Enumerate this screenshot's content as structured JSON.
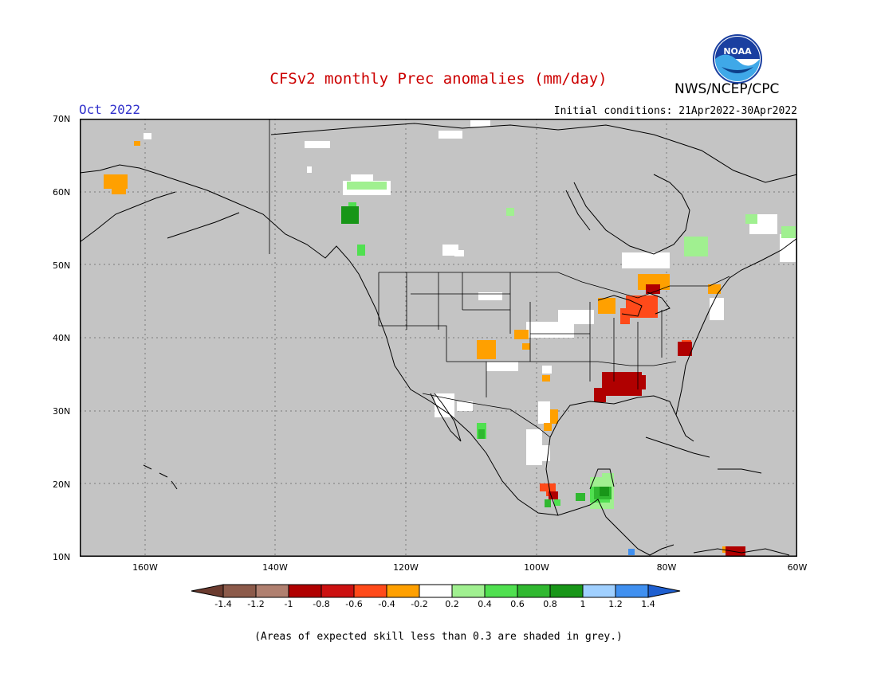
{
  "title": "CFSv2 monthly Prec anomalies (mm/day)",
  "agency": "NWS/NCEP/CPC",
  "logo_text": "NOAA",
  "period": "Oct 2022",
  "initial_conditions": "Initial conditions: 21Apr2022-30Apr2022",
  "footnote": "(Areas of expected skill less than 0.3 are shaded in grey.)",
  "colors": {
    "title": "#cc0000",
    "period": "#3333cc",
    "skill_mask": "#c4c4c4",
    "land_outline": "#000000",
    "no_anomaly": "#ffffff"
  },
  "map": {
    "lat_labels": [
      "70N",
      "60N",
      "50N",
      "40N",
      "30N",
      "20N",
      "10N"
    ],
    "lon_labels": [
      "160W",
      "140W",
      "120W",
      "100W",
      "80W",
      "60W"
    ],
    "lat_range": [
      10,
      70
    ],
    "lon_range": [
      -170,
      -60
    ],
    "grid": "dotted",
    "anomaly_regions": [
      {
        "region": "Western Alaska coast",
        "class": "-0.4"
      },
      {
        "region": "Great Lakes",
        "class": "-0.6"
      },
      {
        "region": "Mid-Atlantic coast",
        "class": "-0.8"
      },
      {
        "region": "Southeastern US (Mississippi/Alabama)",
        "class": "-0.8"
      },
      {
        "region": "Colorado / Kansas",
        "class": "-0.4"
      },
      {
        "region": "Northern Baja / Sonora",
        "class": "0.4"
      },
      {
        "region": "Yucatan Peninsula",
        "class": "0.6"
      },
      {
        "region": "Northern British Columbia",
        "class": "0.6"
      },
      {
        "region": "Labrador / Quebec",
        "class": "0.2"
      },
      {
        "region": "Southern Mexico",
        "class": "-0.6"
      },
      {
        "region": "Northern Venezuela",
        "class": "-0.8"
      }
    ]
  },
  "colorbar": {
    "labels": [
      "-1.4",
      "-1.2",
      "-1",
      "-0.8",
      "-0.6",
      "-0.4",
      "-0.2",
      "0.2",
      "0.4",
      "0.6",
      "0.8",
      "1",
      "1.2",
      "1.4"
    ],
    "colors": [
      "#6b3b2f",
      "#8c5a4a",
      "#b08070",
      "#b00000",
      "#cc1010",
      "#ff4a1a",
      "#ffa000",
      "#ffffff",
      "#a0f090",
      "#50e050",
      "#30b830",
      "#189618",
      "#a0d0ff",
      "#4090f0",
      "#1f5fd0"
    ]
  }
}
